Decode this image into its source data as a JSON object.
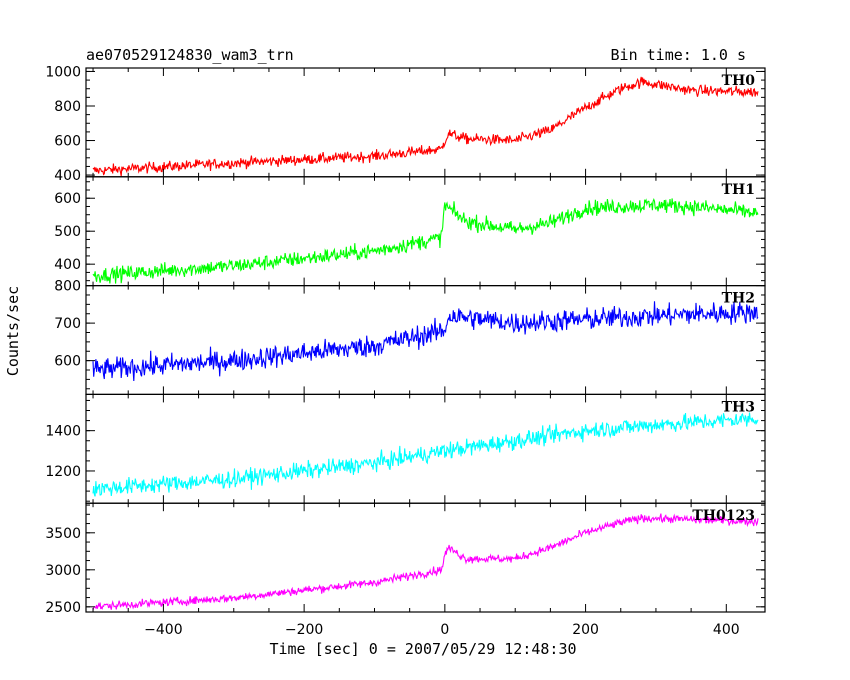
{
  "header": {
    "title": "ae070529124830_wam3_trn",
    "bin_time": "Bin time: 1.0 s"
  },
  "axes": {
    "xlabel": "Time [sec] 0 = 2007/05/29 12:48:30",
    "ylabel": "Counts/sec"
  },
  "chart_data": {
    "type": "line",
    "xlim": [
      -510,
      455
    ],
    "x_ticks": [
      -400,
      -200,
      0,
      200,
      400
    ],
    "x_tick_labels": [
      "−400",
      "−200",
      "0",
      "200",
      "400"
    ],
    "x_range": [
      -500,
      445
    ],
    "panels": [
      {
        "name": "TH0",
        "color": "#ff0000",
        "ylim": [
          390,
          1020
        ],
        "y_ticks": [
          400,
          600,
          800,
          1000
        ],
        "y_tick_labels": [
          "400",
          "600",
          "800",
          "1000"
        ],
        "noise": 40,
        "curve": [
          [
            -500,
            425
          ],
          [
            -300,
            470
          ],
          [
            -100,
            510
          ],
          [
            -5,
            550
          ],
          [
            0,
            600
          ],
          [
            5,
            640
          ],
          [
            30,
            610
          ],
          [
            100,
            600
          ],
          [
            150,
            660
          ],
          [
            200,
            790
          ],
          [
            250,
            900
          ],
          [
            280,
            940
          ],
          [
            350,
            890
          ],
          [
            445,
            880
          ]
        ]
      },
      {
        "name": "TH1",
        "color": "#00ff00",
        "ylim": [
          335,
          665
        ],
        "y_ticks": [
          400,
          500,
          600
        ],
        "y_tick_labels": [
          "400",
          "500",
          "600"
        ],
        "noise": 30,
        "curve": [
          [
            -500,
            365
          ],
          [
            -300,
            395
          ],
          [
            -100,
            440
          ],
          [
            -5,
            480
          ],
          [
            0,
            580
          ],
          [
            5,
            570
          ],
          [
            30,
            530
          ],
          [
            100,
            505
          ],
          [
            150,
            525
          ],
          [
            200,
            570
          ],
          [
            300,
            580
          ],
          [
            350,
            575
          ],
          [
            445,
            555
          ]
        ]
      },
      {
        "name": "TH2",
        "color": "#0000ff",
        "ylim": [
          510,
          800
        ],
        "y_ticks": [
          600,
          700,
          800
        ],
        "y_tick_labels": [
          "600",
          "700",
          "800"
        ],
        "noise": 38,
        "curve": [
          [
            -500,
            575
          ],
          [
            -300,
            600
          ],
          [
            -100,
            640
          ],
          [
            0,
            680
          ],
          [
            5,
            720
          ],
          [
            100,
            700
          ],
          [
            200,
            710
          ],
          [
            300,
            720
          ],
          [
            445,
            730
          ]
        ]
      },
      {
        "name": "TH3",
        "color": "#00ffff",
        "ylim": [
          1040,
          1580
        ],
        "y_ticks": [
          1200,
          1400
        ],
        "y_tick_labels": [
          "1200",
          "1400"
        ],
        "noise": 55,
        "curve": [
          [
            -500,
            1110
          ],
          [
            -300,
            1160
          ],
          [
            -100,
            1240
          ],
          [
            0,
            1300
          ],
          [
            100,
            1350
          ],
          [
            200,
            1400
          ],
          [
            300,
            1430
          ],
          [
            445,
            1460
          ]
        ]
      },
      {
        "name": "TH0123",
        "color": "#ff00ff",
        "ylim": [
          2430,
          3900
        ],
        "y_ticks": [
          2500,
          3000,
          3500
        ],
        "y_tick_labels": [
          "2500",
          "3000",
          "3500"
        ],
        "noise": 70,
        "curve": [
          [
            -500,
            2500
          ],
          [
            -300,
            2620
          ],
          [
            -100,
            2830
          ],
          [
            -5,
            3000
          ],
          [
            0,
            3200
          ],
          [
            5,
            3300
          ],
          [
            30,
            3150
          ],
          [
            100,
            3150
          ],
          [
            150,
            3300
          ],
          [
            200,
            3500
          ],
          [
            250,
            3640
          ],
          [
            280,
            3700
          ],
          [
            350,
            3680
          ],
          [
            445,
            3650
          ]
        ]
      }
    ]
  }
}
